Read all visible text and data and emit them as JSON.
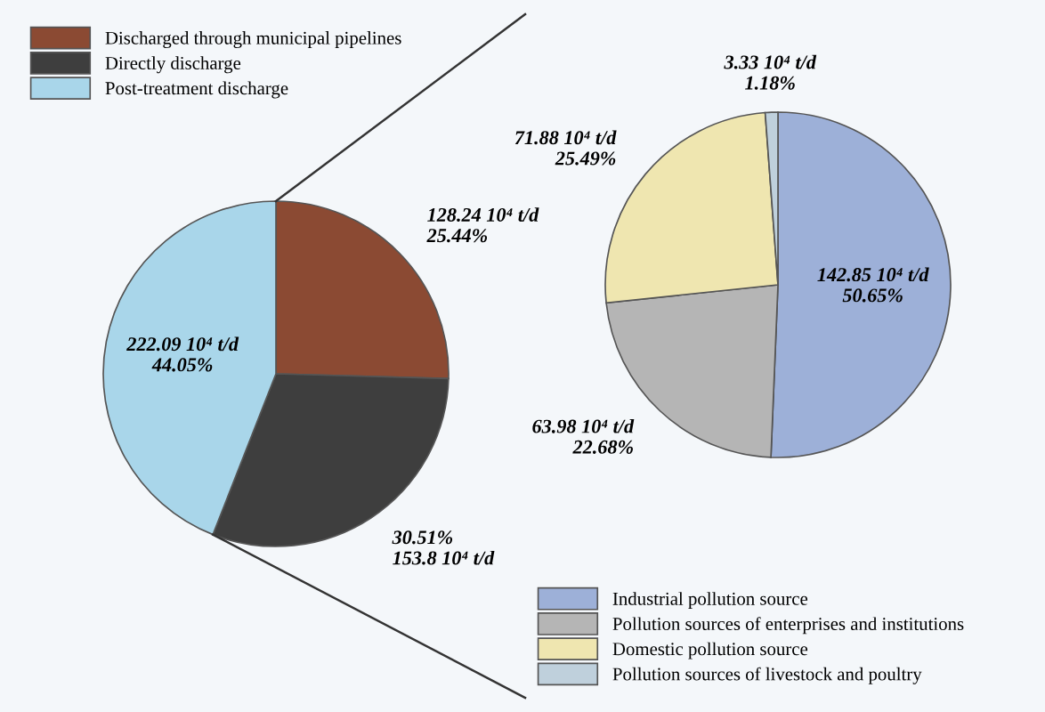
{
  "chart_data": [
    {
      "type": "pie",
      "categories": [
        "Discharged through municipal pipelines",
        "Directly discharge",
        "Post-treatment discharge"
      ],
      "values": [
        128.24,
        153.8,
        222.09
      ],
      "colors": [
        "#8b4a33",
        "#3e3e3e",
        "#a9d6ea"
      ],
      "value_labels": [
        "128.24 10⁴ t/d\n25.44%",
        "30.51%\n153.8 10⁴ t/d",
        "222.09 10⁴ t/d\n44.05%"
      ],
      "legend": "top left"
    },
    {
      "type": "pie",
      "categories": [
        "Industrial pollution source",
        "Pollution sources of enterprises and institutions",
        "Domestic pollution source",
        "Pollution sources of livestock and poultry"
      ],
      "values": [
        142.85,
        63.98,
        71.88,
        3.33
      ],
      "colors": [
        "#9db0d8",
        "#b5b5b5",
        "#efe6b0",
        "#bfd0dc"
      ],
      "value_labels": [
        "142.85 10⁴ t/d\n50.65%",
        "63.98 10⁴ t/d\n22.68%",
        "71.88 10⁴ t/d\n25.49%",
        "3.33 10⁴ t/d\n1.18%"
      ],
      "legend": "bottom"
    }
  ]
}
